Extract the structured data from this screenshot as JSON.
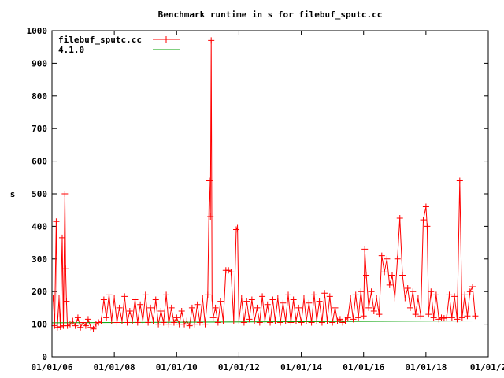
{
  "chart_data": {
    "type": "line",
    "title": "Benchmark runtime in s for filebuf_sputc.cc",
    "xlabel": "",
    "ylabel": "s",
    "ylim": [
      0,
      1000
    ],
    "xlim": [
      "2006-01-01",
      "2020-01-01"
    ],
    "y_ticks": [
      "0",
      "100",
      "200",
      "300",
      "400",
      "500",
      "600",
      "700",
      "800",
      "900",
      "1000"
    ],
    "x_ticks": [
      "01/01/06",
      "01/01/08",
      "01/01/10",
      "01/01/12",
      "01/01/14",
      "01/01/16",
      "01/01/18",
      "01/01/2"
    ],
    "legend_position": "top-left",
    "grid": false,
    "series": [
      {
        "name": "filebuf_sputc.cc",
        "color": "#ff0000",
        "marker": "plus",
        "points": [
          [
            "2006-01-15",
            180
          ],
          [
            "2006-02-01",
            95
          ],
          [
            "2006-02-20",
            415
          ],
          [
            "2006-03-05",
            90
          ],
          [
            "2006-03-25",
            180
          ],
          [
            "2006-04-10",
            92
          ],
          [
            "2006-05-01",
            365
          ],
          [
            "2006-05-15",
            95
          ],
          [
            "2006-06-01",
            500
          ],
          [
            "2006-06-10",
            270
          ],
          [
            "2006-06-20",
            170
          ],
          [
            "2006-07-01",
            95
          ],
          [
            "2006-08-01",
            100
          ],
          [
            "2006-09-01",
            110
          ],
          [
            "2006-10-01",
            95
          ],
          [
            "2006-11-01",
            120
          ],
          [
            "2006-12-01",
            90
          ],
          [
            "2007-01-01",
            105
          ],
          [
            "2007-02-01",
            95
          ],
          [
            "2007-03-01",
            115
          ],
          [
            "2007-04-01",
            90
          ],
          [
            "2007-05-01",
            85
          ],
          [
            "2007-06-01",
            100
          ],
          [
            "2007-07-01",
            105
          ],
          [
            "2007-08-01",
            110
          ],
          [
            "2007-09-01",
            175
          ],
          [
            "2007-10-01",
            120
          ],
          [
            "2007-11-01",
            190
          ],
          [
            "2007-12-01",
            110
          ],
          [
            "2008-01-01",
            180
          ],
          [
            "2008-02-01",
            105
          ],
          [
            "2008-03-01",
            150
          ],
          [
            "2008-04-01",
            110
          ],
          [
            "2008-05-01",
            185
          ],
          [
            "2008-06-01",
            105
          ],
          [
            "2008-07-01",
            140
          ],
          [
            "2008-08-01",
            110
          ],
          [
            "2008-09-01",
            175
          ],
          [
            "2008-10-01",
            105
          ],
          [
            "2008-11-01",
            160
          ],
          [
            "2008-12-01",
            110
          ],
          [
            "2009-01-01",
            190
          ],
          [
            "2009-02-01",
            105
          ],
          [
            "2009-03-01",
            150
          ],
          [
            "2009-04-01",
            110
          ],
          [
            "2009-05-01",
            175
          ],
          [
            "2009-06-01",
            100
          ],
          [
            "2009-07-01",
            140
          ],
          [
            "2009-08-01",
            105
          ],
          [
            "2009-09-01",
            190
          ],
          [
            "2009-10-01",
            100
          ],
          [
            "2009-11-01",
            150
          ],
          [
            "2009-12-01",
            105
          ],
          [
            "2010-01-01",
            120
          ],
          [
            "2010-02-01",
            100
          ],
          [
            "2010-03-01",
            140
          ],
          [
            "2010-04-01",
            100
          ],
          [
            "2010-05-01",
            110
          ],
          [
            "2010-06-01",
            95
          ],
          [
            "2010-07-01",
            150
          ],
          [
            "2010-08-01",
            100
          ],
          [
            "2010-09-01",
            160
          ],
          [
            "2010-10-01",
            105
          ],
          [
            "2010-11-01",
            180
          ],
          [
            "2010-12-01",
            100
          ],
          [
            "2011-01-01",
            190
          ],
          [
            "2011-01-20",
            540
          ],
          [
            "2011-02-01",
            430
          ],
          [
            "2011-02-10",
            970
          ],
          [
            "2011-02-20",
            180
          ],
          [
            "2011-03-05",
            120
          ],
          [
            "2011-04-01",
            150
          ],
          [
            "2011-05-01",
            105
          ],
          [
            "2011-06-01",
            170
          ],
          [
            "2011-07-01",
            110
          ],
          [
            "2011-08-01",
            265
          ],
          [
            "2011-09-01",
            265
          ],
          [
            "2011-10-01",
            260
          ],
          [
            "2011-11-01",
            110
          ],
          [
            "2011-12-01",
            390
          ],
          [
            "2011-12-15",
            395
          ],
          [
            "2012-01-01",
            110
          ],
          [
            "2012-02-01",
            180
          ],
          [
            "2012-03-01",
            105
          ],
          [
            "2012-04-01",
            170
          ],
          [
            "2012-05-01",
            115
          ],
          [
            "2012-06-01",
            175
          ],
          [
            "2012-07-01",
            110
          ],
          [
            "2012-08-01",
            150
          ],
          [
            "2012-09-01",
            105
          ],
          [
            "2012-10-01",
            185
          ],
          [
            "2012-11-01",
            110
          ],
          [
            "2012-12-01",
            160
          ],
          [
            "2013-01-01",
            105
          ],
          [
            "2013-02-01",
            175
          ],
          [
            "2013-03-01",
            110
          ],
          [
            "2013-04-01",
            180
          ],
          [
            "2013-05-01",
            105
          ],
          [
            "2013-06-01",
            165
          ],
          [
            "2013-07-01",
            110
          ],
          [
            "2013-08-01",
            190
          ],
          [
            "2013-09-01",
            105
          ],
          [
            "2013-10-01",
            175
          ],
          [
            "2013-11-01",
            110
          ],
          [
            "2013-12-01",
            150
          ],
          [
            "2014-01-01",
            105
          ],
          [
            "2014-02-01",
            180
          ],
          [
            "2014-03-01",
            110
          ],
          [
            "2014-04-01",
            165
          ],
          [
            "2014-05-01",
            105
          ],
          [
            "2014-06-01",
            190
          ],
          [
            "2014-07-01",
            110
          ],
          [
            "2014-08-01",
            170
          ],
          [
            "2014-09-01",
            105
          ],
          [
            "2014-10-01",
            195
          ],
          [
            "2014-11-01",
            110
          ],
          [
            "2014-12-01",
            185
          ],
          [
            "2015-01-01",
            105
          ],
          [
            "2015-02-01",
            150
          ],
          [
            "2015-03-01",
            110
          ],
          [
            "2015-04-01",
            115
          ],
          [
            "2015-05-01",
            105
          ],
          [
            "2015-06-01",
            110
          ],
          [
            "2015-07-01",
            120
          ],
          [
            "2015-08-01",
            180
          ],
          [
            "2015-09-01",
            115
          ],
          [
            "2015-10-01",
            190
          ],
          [
            "2015-11-01",
            120
          ],
          [
            "2015-12-01",
            200
          ],
          [
            "2016-01-01",
            125
          ],
          [
            "2016-01-15",
            330
          ],
          [
            "2016-02-01",
            250
          ],
          [
            "2016-03-01",
            150
          ],
          [
            "2016-04-01",
            200
          ],
          [
            "2016-05-01",
            140
          ],
          [
            "2016-06-01",
            180
          ],
          [
            "2016-07-01",
            130
          ],
          [
            "2016-08-01",
            310
          ],
          [
            "2016-09-01",
            260
          ],
          [
            "2016-10-01",
            300
          ],
          [
            "2016-11-01",
            220
          ],
          [
            "2016-12-01",
            250
          ],
          [
            "2017-01-01",
            180
          ],
          [
            "2017-02-01",
            300
          ],
          [
            "2017-03-01",
            425
          ],
          [
            "2017-04-01",
            250
          ],
          [
            "2017-05-01",
            180
          ],
          [
            "2017-06-01",
            210
          ],
          [
            "2017-07-01",
            150
          ],
          [
            "2017-08-01",
            200
          ],
          [
            "2017-09-01",
            130
          ],
          [
            "2017-10-01",
            180
          ],
          [
            "2017-11-01",
            125
          ],
          [
            "2017-12-01",
            420
          ],
          [
            "2018-01-01",
            460
          ],
          [
            "2018-01-15",
            400
          ],
          [
            "2018-02-01",
            130
          ],
          [
            "2018-03-01",
            200
          ],
          [
            "2018-04-01",
            120
          ],
          [
            "2018-05-01",
            190
          ],
          [
            "2018-06-01",
            115
          ],
          [
            "2018-07-01",
            120
          ],
          [
            "2018-08-01",
            118
          ],
          [
            "2018-09-01",
            120
          ],
          [
            "2018-10-01",
            190
          ],
          [
            "2018-11-01",
            120
          ],
          [
            "2018-12-01",
            185
          ],
          [
            "2019-01-01",
            115
          ],
          [
            "2019-02-01",
            540
          ],
          [
            "2019-03-01",
            120
          ],
          [
            "2019-04-01",
            190
          ],
          [
            "2019-05-01",
            125
          ],
          [
            "2019-06-01",
            200
          ],
          [
            "2019-07-01",
            215
          ],
          [
            "2019-08-01",
            125
          ]
        ]
      },
      {
        "name": "4.1.0",
        "color": "#00a000",
        "marker": "none",
        "points": [
          [
            "2006-01-01",
            104
          ],
          [
            "2019-08-01",
            110
          ]
        ]
      }
    ]
  }
}
